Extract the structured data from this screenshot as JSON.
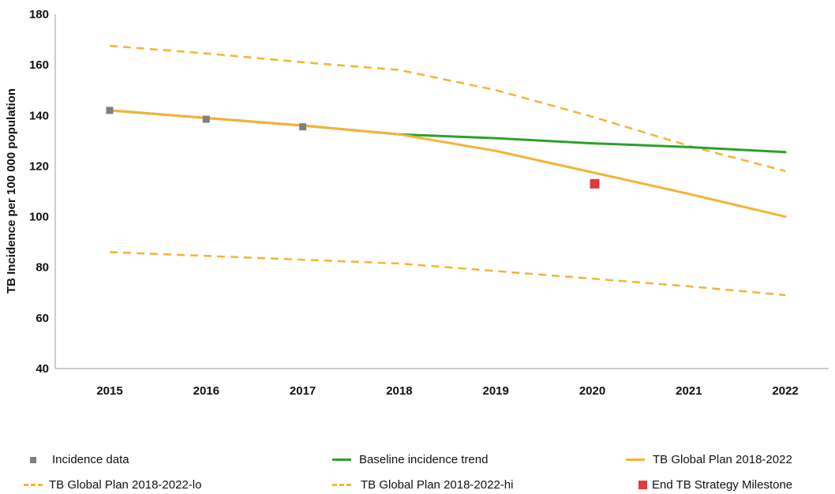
{
  "chart_data": {
    "type": "line",
    "title": "",
    "xlabel": "",
    "ylabel": "TB Incidence per 100 000 population",
    "categories": [
      "2015",
      "2016",
      "2017",
      "2018",
      "2019",
      "2020",
      "2021",
      "2022"
    ],
    "yticks": [
      "40",
      "60",
      "80",
      "100",
      "120",
      "140",
      "160",
      "180"
    ],
    "ylim": [
      40,
      180
    ],
    "grid": false,
    "legend_position": "bottom",
    "series": [
      {
        "name": "Incidence data",
        "kind": "marker",
        "color": "#808080",
        "points": [
          {
            "x": "2015",
            "y": 142
          },
          {
            "x": "2016",
            "y": 138.5
          },
          {
            "x": "2017",
            "y": 135.5
          }
        ]
      },
      {
        "name": "Baseline incidence trend",
        "kind": "line",
        "color": "#2ca02c",
        "values": [
          142,
          139,
          136,
          132.5,
          131,
          129,
          127.5,
          125.5
        ]
      },
      {
        "name": "TB Global Plan 2018-2022",
        "kind": "line",
        "color": "#f5b336",
        "values": [
          142,
          139,
          136,
          132.5,
          126,
          117.5,
          109,
          100
        ]
      },
      {
        "name": "TB Global Plan 2018-2022-lo",
        "kind": "dashed",
        "color": "#f5b336",
        "values": [
          86,
          84.5,
          83,
          81.5,
          78.5,
          75.5,
          72.5,
          69
        ]
      },
      {
        "name": "TB Global Plan 2018-2022-hi",
        "kind": "dashed",
        "color": "#f5b336",
        "values": [
          167.5,
          164.5,
          161,
          158,
          150,
          139.5,
          128,
          118
        ]
      },
      {
        "name": "End TB Strategy Milestone",
        "kind": "square",
        "color": "#e03a3e",
        "points": [
          {
            "x": "2020",
            "y": 113
          }
        ]
      }
    ]
  }
}
